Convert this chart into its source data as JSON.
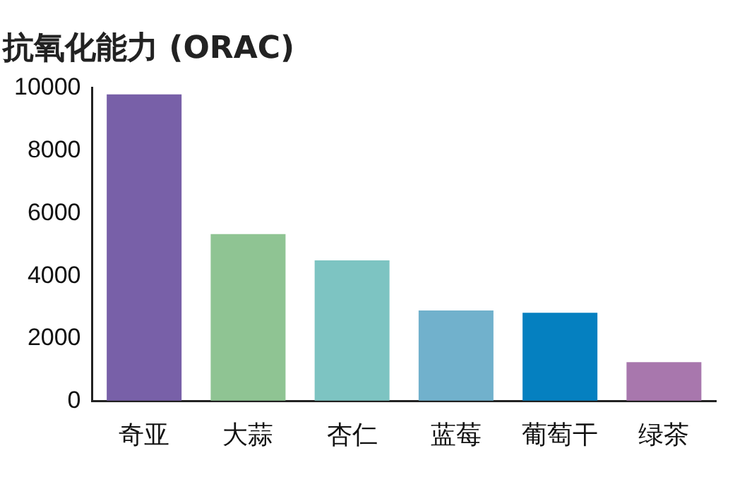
{
  "chart_data": {
    "type": "bar",
    "title": "抗氧化能力 (ORAC)",
    "categories": [
      "奇亚",
      "大蒜",
      "杏仁",
      "蓝莓",
      "葡萄干",
      "绿茶"
    ],
    "values": [
      9800,
      5340,
      4500,
      2900,
      2830,
      1250
    ],
    "colors": [
      "#7860a8",
      "#8fc493",
      "#7dc4c2",
      "#71b1cc",
      "#0580c0",
      "#a877ad"
    ],
    "ylim": [
      0,
      10000
    ],
    "yticks": [
      0,
      2000,
      4000,
      6000,
      8000,
      10000
    ],
    "grid": false
  }
}
